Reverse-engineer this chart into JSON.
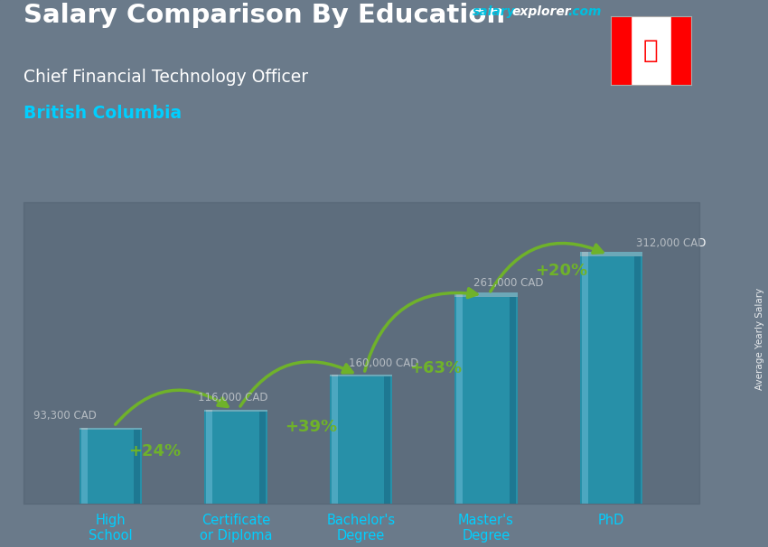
{
  "title_main": "Salary Comparison By Education",
  "title_sub": "Chief Financial Technology Officer",
  "title_loc": "British Columbia",
  "ylabel": "Average Yearly Salary",
  "categories": [
    "High\nSchool",
    "Certificate\nor Diploma",
    "Bachelor's\nDegree",
    "Master's\nDegree",
    "PhD"
  ],
  "values": [
    93300,
    116000,
    160000,
    261000,
    312000
  ],
  "value_labels": [
    "93,300 CAD",
    "116,000 CAD",
    "160,000 CAD",
    "261,000 CAD",
    "312,000 CAD"
  ],
  "pct_labels": [
    "+24%",
    "+39%",
    "+63%",
    "+20%"
  ],
  "bar_color_main": "#00bfdf",
  "bar_color_light": "#55e0ff",
  "bar_color_dark": "#0088aa",
  "bar_color_top": "#88eeff",
  "bar_color_side": "#006688",
  "bg_color": "#5a6a7a",
  "text_color_white": "#ffffff",
  "text_color_cyan": "#00cfff",
  "text_color_green": "#88ee00",
  "arrow_color": "#88ee00",
  "salary_label_color": "#ffffff",
  "site_salary_color": "#00bfdf",
  "site_explorer_color": "#00bfdf",
  "site_com_color": "#00bfdf",
  "figsize": [
    8.5,
    6.06
  ],
  "dpi": 100,
  "ylim": [
    0,
    380000
  ],
  "bar_width": 0.5,
  "bar_depth": 0.08,
  "bar_gap": 1.0
}
